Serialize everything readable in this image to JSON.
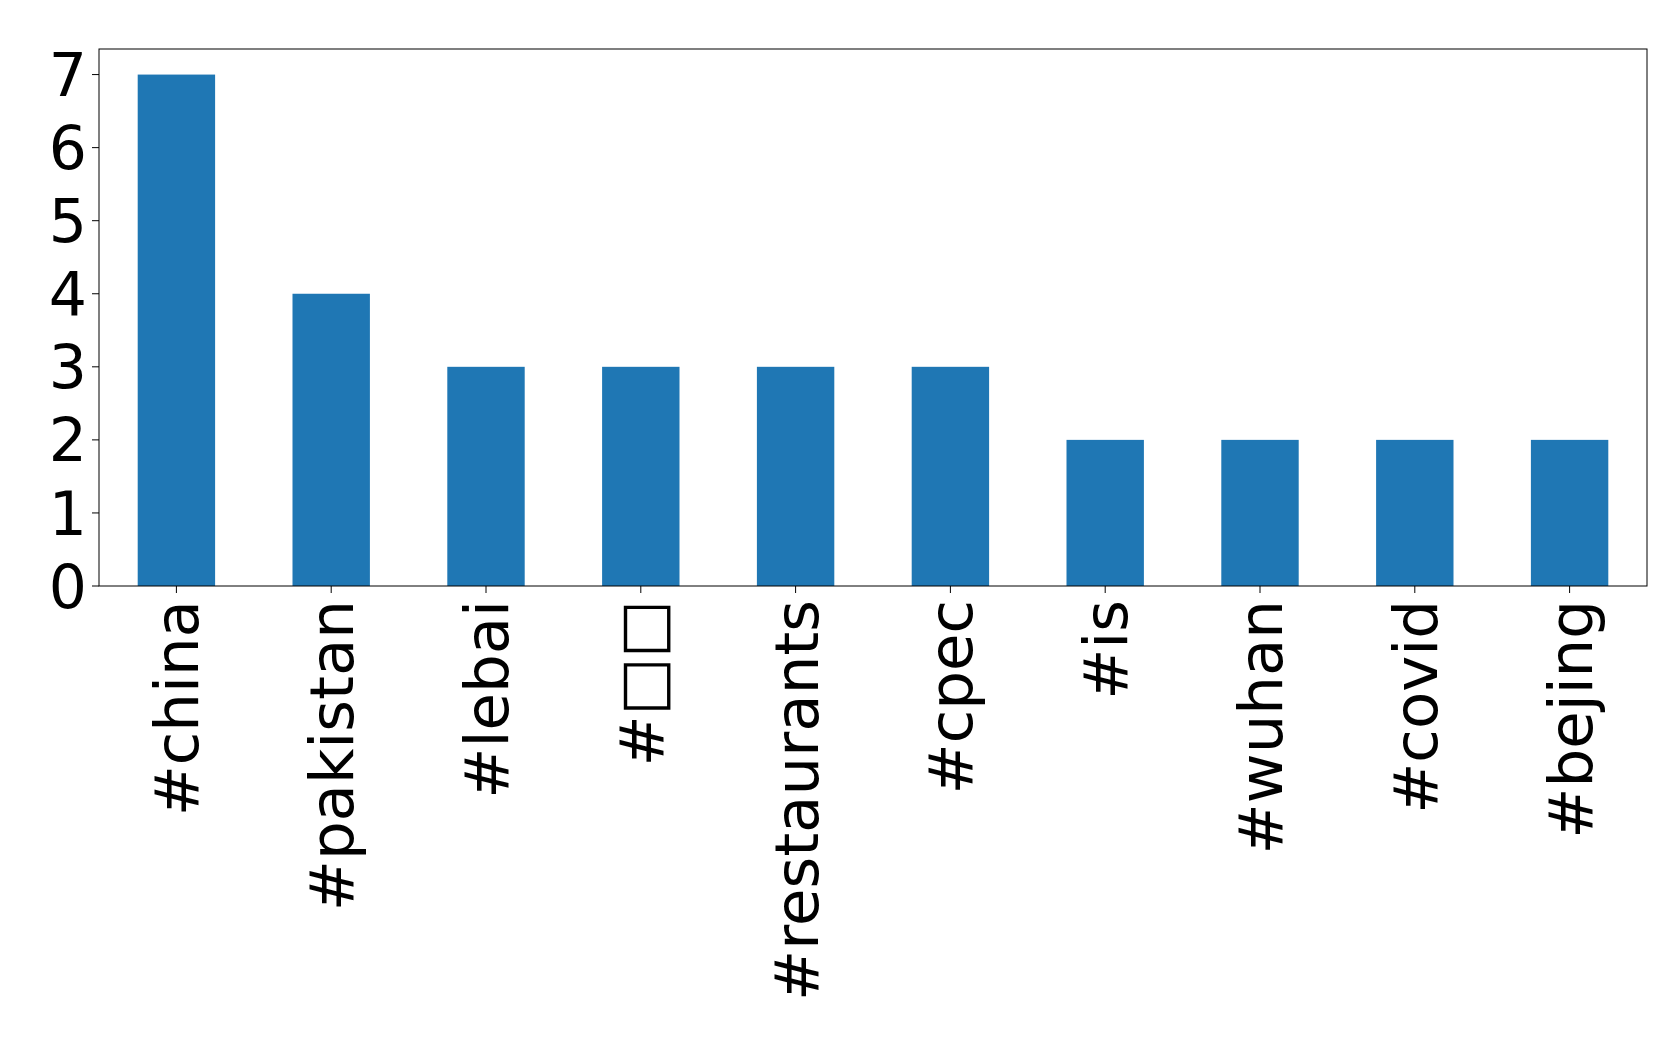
{
  "chart_data": {
    "type": "bar",
    "categories": [
      "#china",
      "#pakistan",
      "#lebai",
      "#□□",
      "#restaurants",
      "#cpec",
      "#is",
      "#wuhan",
      "#covid",
      "#bejing"
    ],
    "values": [
      7,
      4,
      3,
      3,
      3,
      3,
      2,
      2,
      2,
      2
    ],
    "color": "#1f77b4",
    "ylim": [
      0,
      7.35
    ],
    "yticks": [
      0,
      1,
      2,
      3,
      4,
      5,
      6,
      7
    ]
  }
}
